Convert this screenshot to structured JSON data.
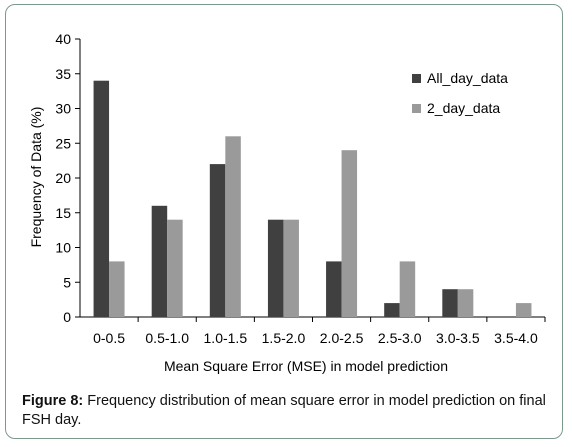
{
  "caption": {
    "label": "Figure 8:",
    "text": "Frequency distribution of mean square error in model prediction on final FSH day."
  },
  "chart_data": {
    "type": "bar",
    "categories": [
      "0-0.5",
      "0.5-1.0",
      "1.0-1.5",
      "1.5-2.0",
      "2.0-2.5",
      "2.5-3.0",
      "3.0-3.5",
      "3.5-4.0"
    ],
    "series": [
      {
        "name": "All_day_data",
        "values": [
          34,
          16,
          22,
          14,
          8,
          2,
          4,
          0
        ],
        "color": "#404040"
      },
      {
        "name": "2_day_data",
        "values": [
          8,
          14,
          26,
          14,
          24,
          8,
          4,
          2
        ],
        "color": "#9a9a9a"
      }
    ],
    "xlabel": "Mean Square Error (MSE) in model prediction",
    "ylabel": "Frequency of Data (%)",
    "ylim": [
      0,
      40
    ],
    "yticks": [
      0,
      5,
      10,
      15,
      20,
      25,
      30,
      35,
      40
    ],
    "grid": false,
    "legend": "top-right"
  }
}
